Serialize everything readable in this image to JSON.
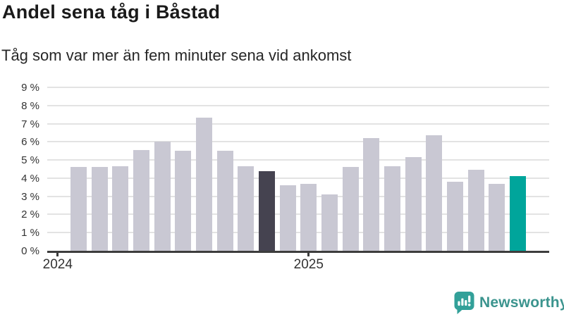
{
  "title": "Andel sena tåg i Båstad",
  "subtitle": "Tåg som var mer än fem minuter sena vid ankomst",
  "chart_data": {
    "type": "bar",
    "title": "Andel sena tåg i Båstad",
    "subtitle": "Tåg som var mer än fem minuter sena vid ankomst",
    "unit": "%",
    "ylim": [
      0,
      9
    ],
    "grid": true,
    "categories": [
      "2024-01",
      "2024-02",
      "2024-03",
      "2024-04",
      "2024-05",
      "2024-06",
      "2024-07",
      "2024-08",
      "2024-09",
      "2024-10",
      "2024-11",
      "2024-12",
      "2025-01",
      "2025-02",
      "2025-03",
      "2025-04",
      "2025-05",
      "2025-06",
      "2025-07",
      "2025-08",
      "2025-09",
      "2025-10",
      "2025-11",
      "2025-12"
    ],
    "values": [
      null,
      4.6,
      4.6,
      4.65,
      5.55,
      6.0,
      5.5,
      7.35,
      5.5,
      4.65,
      4.4,
      3.6,
      3.7,
      3.1,
      4.6,
      6.2,
      4.65,
      5.15,
      6.35,
      3.8,
      4.45,
      3.7,
      4.1,
      null
    ],
    "highlights": {
      "previous_year_month_index": 10,
      "latest_month_index": 22
    },
    "ytick_labels": [
      "0 %",
      "1 %",
      "2 %",
      "3 %",
      "4 %",
      "5 %",
      "6 %",
      "7 %",
      "8 %",
      "9 %"
    ],
    "xticks": [
      {
        "slot_index": 0,
        "label": "2024"
      },
      {
        "slot_index": 12,
        "label": "2025"
      }
    ],
    "colors": {
      "bar": "#c9c8d3",
      "highlight_previous": "#454350",
      "highlight_latest": "#00a59b",
      "grid": "#e3e3e3",
      "axis": "#3d3d3d"
    },
    "legend": null
  },
  "branding": {
    "logo_text": "Newsworthy",
    "logo_color": "#3b948e",
    "icon_color": "#32a099"
  }
}
